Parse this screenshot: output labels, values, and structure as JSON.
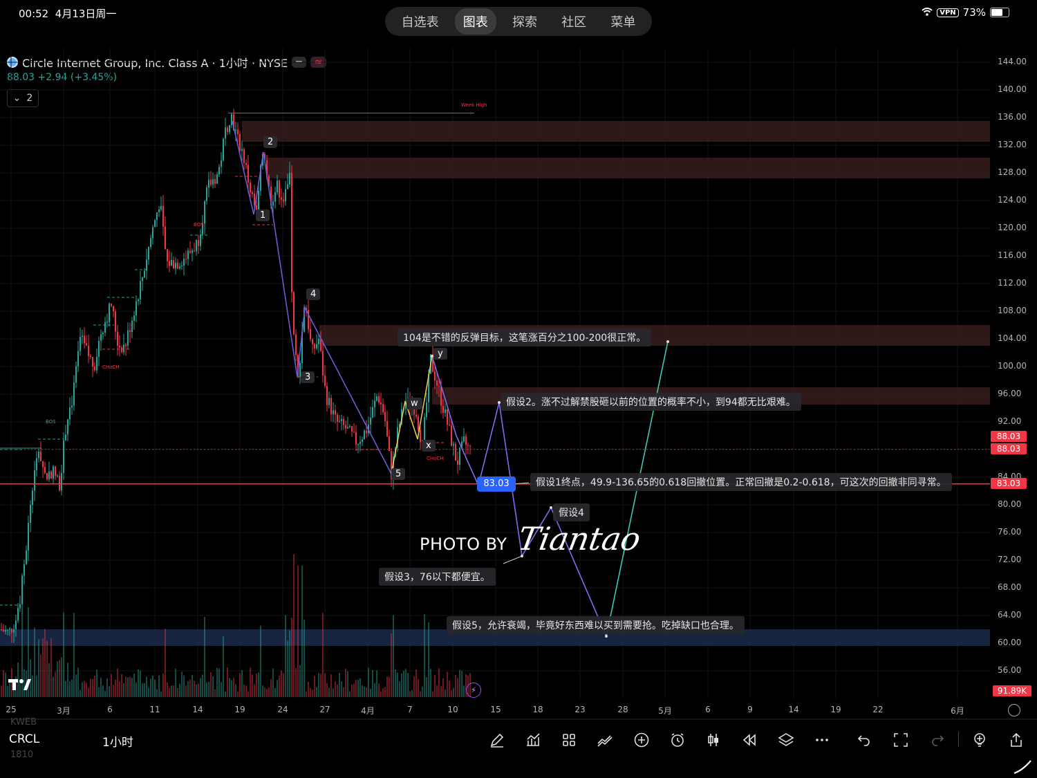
{
  "status": {
    "time": "00:52",
    "date": "4月13日周一",
    "vpn": "VPN",
    "battery": "73%",
    "battery_level": 0.73
  },
  "nav": {
    "tabs": [
      "自选表",
      "图表",
      "探索",
      "社区",
      "菜单"
    ],
    "active": 1
  },
  "header": {
    "title": "Circle Internet Group, Inc. Class A · 1小时 · NYSE",
    "pill_a": "━",
    "pill_b": "≈",
    "price": "88.03",
    "change": "+2.94 (+3.45%)",
    "collapse_count": "2"
  },
  "colors": {
    "up": "#26a69a",
    "down": "#f23645",
    "accent": "#2962ff",
    "wave": "#6b5bd6",
    "path": "#7f6cf0",
    "target": "#3ec9b5"
  },
  "chart_data": {
    "type": "candlestick",
    "symbol": "CRCL",
    "interval": "1小时",
    "y_axis": [
      "144.00",
      "140.00",
      "136.00",
      "132.00",
      "128.00",
      "124.00",
      "120.00",
      "116.00",
      "112.00",
      "108.00",
      "104.00",
      "100.00",
      "96.00",
      "92.00",
      "88.00",
      "84.00",
      "80.00",
      "76.00",
      "72.00",
      "68.00",
      "64.00",
      "60.00",
      "56.00"
    ],
    "x_axis": [
      "25",
      "3月",
      "6",
      "11",
      "14",
      "19",
      "24",
      "27",
      "4月",
      "7",
      "10",
      "15",
      "18",
      "23",
      "28",
      "5月",
      "6",
      "9",
      "14",
      "19",
      "22",
      "6月"
    ],
    "last_price": 88.03,
    "price_tags": [
      "88.03",
      "88.03",
      "83.03"
    ],
    "cursor_price": "83.03",
    "volume_tag": "91.89K",
    "horizontal_line": 83.03,
    "zones": [
      {
        "low": 132.5,
        "high": 135.5,
        "kind": "supply"
      },
      {
        "low": 127.2,
        "high": 130.2,
        "kind": "supply"
      },
      {
        "low": 103.0,
        "high": 106.0,
        "kind": "supply"
      },
      {
        "low": 94.5,
        "high": 97.0,
        "kind": "supply"
      },
      {
        "low": 59.6,
        "high": 62.0,
        "kind": "demand"
      }
    ],
    "level_label": "Week High",
    "wave_labels": [
      "1",
      "2",
      "3",
      "4",
      "5",
      "w",
      "x",
      "y"
    ],
    "structure_labels": [
      "BOS",
      "CHoCH"
    ],
    "annotations": [
      "104是不错的反弹目标，这笔涨百分之100-200很正常。",
      "假设2。涨不过解禁股砸以前的位置的概率不小，到94都无比艰难。",
      "假设1终点，49.9-136.65的0.618回撤位置。正常回撤是0.2-0.618，可这次的回撤非同寻常。",
      "假设4",
      "假设3，76以下都便宜。",
      "假设5，允许衰竭，毕竟好东西难以买到需要抢。吃掉缺口也合理。"
    ],
    "watermark": {
      "prefix": "PHOTO BY",
      "signature": "Tiantao"
    }
  },
  "toolbar": {
    "symbol": "CRCL",
    "interval": "1小时",
    "ghost_above": "KWEB",
    "ghost_below": "1810",
    "icons": [
      "pen-icon",
      "indicators-icon",
      "layout-icon",
      "compare-icon",
      "add-icon",
      "alert-icon",
      "candle-type-icon",
      "replay-icon",
      "layers-icon",
      "more-icon",
      "undo-icon",
      "fullscreen-icon",
      "redo-icon",
      "idea-icon",
      "share-icon"
    ]
  }
}
